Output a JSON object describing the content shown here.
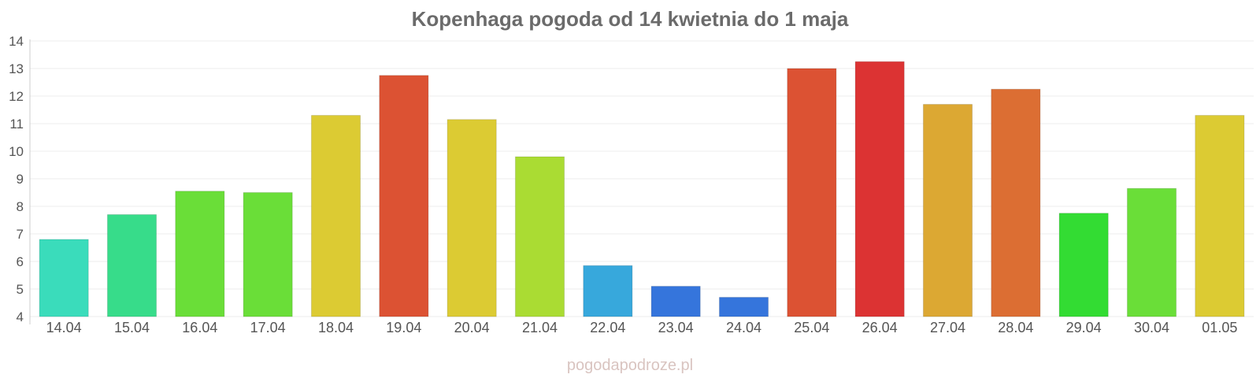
{
  "chart_data": {
    "type": "bar",
    "title": "Kopenhaga pogoda od 14 kwietnia do 1 maja",
    "categories": [
      "14.04",
      "15.04",
      "16.04",
      "17.04",
      "18.04",
      "19.04",
      "20.04",
      "21.04",
      "22.04",
      "23.04",
      "24.04",
      "25.04",
      "26.04",
      "27.04",
      "28.04",
      "29.04",
      "30.04",
      "01.05"
    ],
    "values": [
      6.8,
      7.7,
      8.55,
      8.5,
      11.3,
      12.75,
      11.15,
      9.8,
      5.85,
      5.1,
      4.7,
      13.0,
      13.25,
      11.7,
      12.25,
      7.75,
      8.65,
      11.3
    ],
    "colors": [
      "#3adcbb",
      "#37dc8a",
      "#6ade38",
      "#6ade38",
      "#dccb33",
      "#dc5233",
      "#dccb33",
      "#aadc33",
      "#37a8dc",
      "#3575dc",
      "#3575dc",
      "#dc5233",
      "#dc3333",
      "#dca833",
      "#dc6e33",
      "#33dc33",
      "#6ade38",
      "#dccb33"
    ],
    "ylim": [
      4,
      14
    ],
    "yticks": [
      4,
      5,
      6,
      7,
      8,
      9,
      10,
      11,
      12,
      13,
      14
    ],
    "grid": true,
    "legend": "none"
  },
  "footer": {
    "watermark": "pogodapodroze.pl"
  }
}
